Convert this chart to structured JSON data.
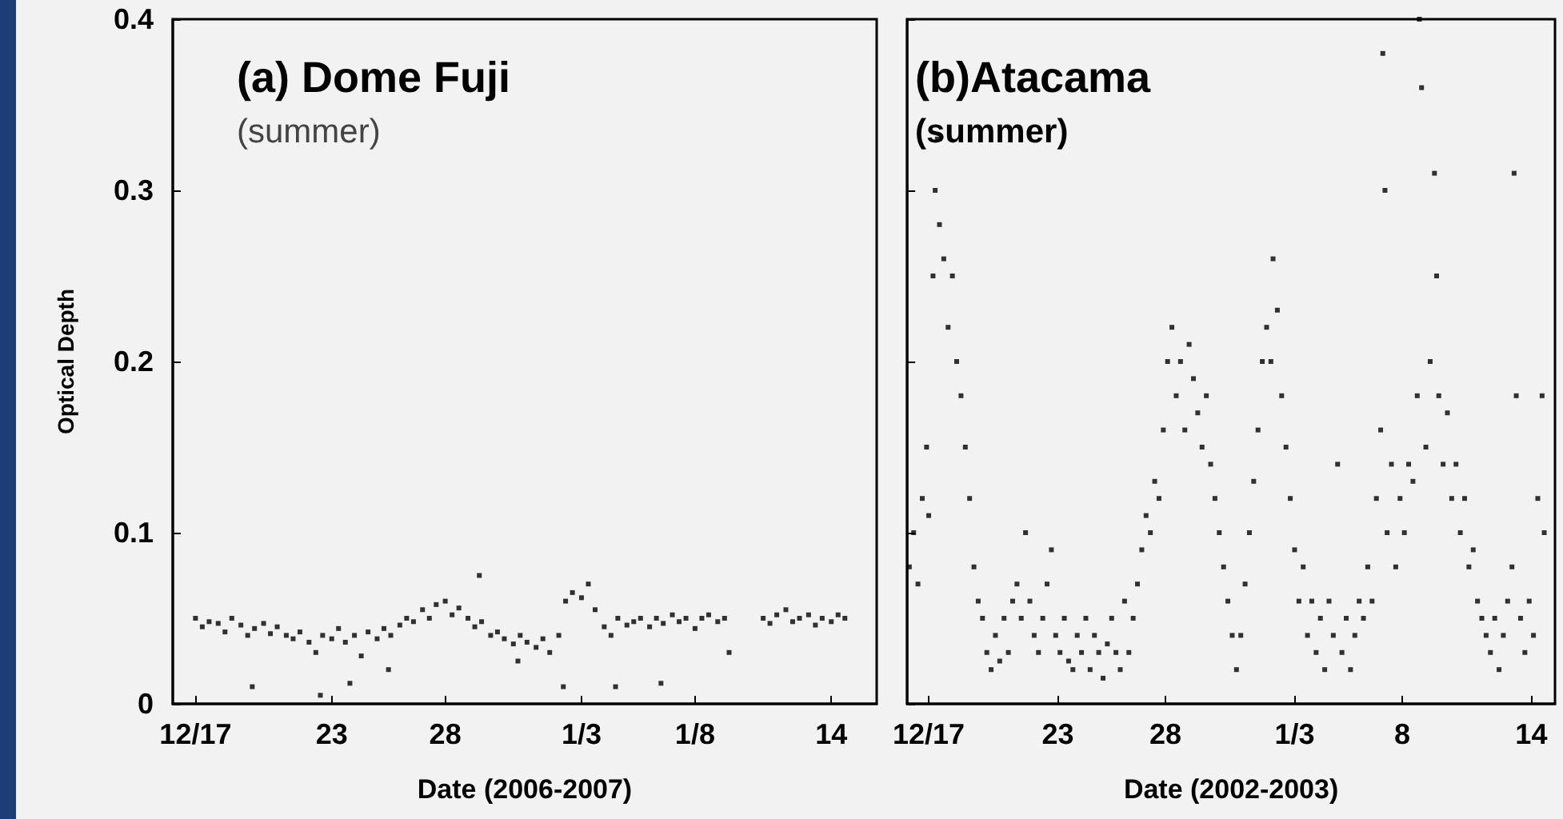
{
  "chart_data": [
    {
      "type": "scatter",
      "title": "(a) Dome Fuji",
      "subtitle": "(summer)",
      "xlabel": "Date (2006-2007)",
      "ylabel": "Optical Depth",
      "marker": "square",
      "grid": false,
      "xlim": [
        "2006-12-16",
        "2007-01-16"
      ],
      "xticks": [
        {
          "value": "2006-12-17",
          "label": "12/17"
        },
        {
          "value": "2006-12-23",
          "label": "23"
        },
        {
          "value": "2006-12-28",
          "label": "28"
        },
        {
          "value": "2007-01-03",
          "label": "1/3"
        },
        {
          "value": "2007-01-08",
          "label": "1/8"
        },
        {
          "value": "2007-01-14",
          "label": "14"
        }
      ],
      "ylim": [
        0,
        0.4
      ],
      "yticks": [
        0,
        0.1,
        0.2,
        0.3,
        0.4
      ],
      "series": [
        {
          "color": "#000000",
          "x": [
            "2006-12-17T00:00",
            "2006-12-17T07:12",
            "2006-12-17T14:24",
            "2006-12-18T00:00",
            "2006-12-18T07:12",
            "2006-12-18T14:24",
            "2006-12-19T00:00",
            "2006-12-19T07:12",
            "2006-12-19T14:24",
            "2006-12-20T00:00",
            "2006-12-20T07:12",
            "2006-12-20T14:24",
            "2006-12-21T00:00",
            "2006-12-21T07:12",
            "2006-12-21T14:24",
            "2006-12-22T00:00",
            "2006-12-22T07:12",
            "2006-12-22T14:24",
            "2006-12-23T00:00",
            "2006-12-23T07:12",
            "2006-12-23T14:24",
            "2006-12-24T00:00",
            "2006-12-24T07:12",
            "2006-12-24T14:24",
            "2006-12-25T00:00",
            "2006-12-25T07:12",
            "2006-12-25T14:24",
            "2006-12-26T00:00",
            "2006-12-26T07:12",
            "2006-12-26T14:24",
            "2006-12-27T00:00",
            "2006-12-27T07:12",
            "2006-12-27T14:24",
            "2006-12-28T00:00",
            "2006-12-28T07:12",
            "2006-12-28T14:24",
            "2006-12-29T00:00",
            "2006-12-29T07:12",
            "2006-12-29T14:24",
            "2006-12-30T00:00",
            "2006-12-30T07:12",
            "2006-12-30T14:24",
            "2006-12-31T00:00",
            "2006-12-31T07:12",
            "2006-12-31T14:24",
            "2007-01-01T00:00",
            "2007-01-01T07:12",
            "2007-01-01T14:24",
            "2007-01-02T00:00",
            "2007-01-02T07:12",
            "2007-01-02T14:24",
            "2007-01-03T00:00",
            "2007-01-03T07:12",
            "2007-01-03T14:24",
            "2007-01-04T00:00",
            "2007-01-04T07:12",
            "2007-01-04T14:24",
            "2007-01-05T00:00",
            "2007-01-05T07:12",
            "2007-01-05T14:24",
            "2007-01-06T00:00",
            "2007-01-06T07:12",
            "2007-01-06T14:24",
            "2007-01-07T00:00",
            "2007-01-07T07:12",
            "2007-01-07T14:24",
            "2007-01-08T00:00",
            "2007-01-08T07:12",
            "2007-01-08T14:24",
            "2007-01-09T00:00",
            "2007-01-09T07:12",
            "2007-01-11T00:00",
            "2007-01-11T07:12",
            "2007-01-11T14:24",
            "2007-01-12T00:00",
            "2007-01-12T07:12",
            "2007-01-12T14:24",
            "2007-01-13T00:00",
            "2007-01-13T07:12",
            "2007-01-13T14:24",
            "2007-01-14T00:00",
            "2007-01-14T07:12",
            "2007-01-14T14:24",
            "2006-12-19T12:00",
            "2006-12-22T12:00",
            "2006-12-23T19:12",
            "2006-12-25T12:00",
            "2006-12-29T12:00",
            "2006-12-31T04:48",
            "2007-01-02T04:48",
            "2007-01-04T12:00",
            "2007-01-06T12:00",
            "2007-01-09T12:00"
          ],
          "values": [
            0.05,
            0.045,
            0.048,
            0.047,
            0.042,
            0.05,
            0.046,
            0.04,
            0.044,
            0.047,
            0.041,
            0.045,
            0.04,
            0.038,
            0.042,
            0.036,
            0.03,
            0.04,
            0.038,
            0.044,
            0.036,
            0.04,
            0.028,
            0.042,
            0.038,
            0.044,
            0.04,
            0.046,
            0.05,
            0.048,
            0.055,
            0.05,
            0.058,
            0.06,
            0.052,
            0.056,
            0.05,
            0.045,
            0.048,
            0.04,
            0.042,
            0.038,
            0.035,
            0.04,
            0.036,
            0.033,
            0.038,
            0.03,
            0.04,
            0.06,
            0.065,
            0.062,
            0.07,
            0.055,
            0.045,
            0.04,
            0.05,
            0.046,
            0.048,
            0.05,
            0.045,
            0.05,
            0.047,
            0.052,
            0.048,
            0.05,
            0.044,
            0.05,
            0.052,
            0.048,
            0.05,
            0.05,
            0.047,
            0.052,
            0.055,
            0.048,
            0.05,
            0.052,
            0.046,
            0.05,
            0.048,
            0.052,
            0.05,
            0.01,
            0.005,
            0.012,
            0.02,
            0.075,
            0.025,
            0.01,
            0.01,
            0.012,
            0.03
          ]
        }
      ]
    },
    {
      "type": "scatter",
      "title": "(b)Atacama",
      "subtitle": "(summer)",
      "xlabel": "Date (2002-2003)",
      "marker": "square",
      "grid": false,
      "tick_labels": "x",
      "xlim": [
        "2002-12-16",
        "2003-01-15T02:24"
      ],
      "xticks": [
        {
          "value": "2002-12-17",
          "label": "12/17"
        },
        {
          "value": "2002-12-23",
          "label": "23"
        },
        {
          "value": "2002-12-28",
          "label": "28"
        },
        {
          "value": "2003-01-03",
          "label": "1/3"
        },
        {
          "value": "2003-01-08",
          "label": "8"
        },
        {
          "value": "2003-01-14",
          "label": "14"
        }
      ],
      "ylim": [
        0,
        0.4
      ],
      "yticks": [
        0,
        0.1,
        0.2,
        0.3,
        0.4
      ],
      "series": [
        {
          "color": "#000000",
          "x": [
            "2002-12-16T02:24",
            "2002-12-16T07:12",
            "2002-12-16T12:00",
            "2002-12-16T16:48",
            "2002-12-16T21:36",
            "2002-12-17T00:00",
            "2002-12-17T04:48",
            "2002-12-17T07:12",
            "2002-12-17T09:36",
            "2002-12-17T12:00",
            "2002-12-17T16:48",
            "2002-12-17T21:36",
            "2002-12-18T02:24",
            "2002-12-18T07:12",
            "2002-12-18T12:00",
            "2002-12-18T16:48",
            "2002-12-18T21:36",
            "2002-12-19T02:24",
            "2002-12-19T07:12",
            "2002-12-19T12:00",
            "2002-12-19T16:48",
            "2002-12-19T21:36",
            "2002-12-20T02:24",
            "2002-12-20T07:12",
            "2002-12-20T12:00",
            "2002-12-20T16:48",
            "2002-12-20T21:36",
            "2002-12-21T02:24",
            "2002-12-21T07:12",
            "2002-12-21T12:00",
            "2002-12-21T16:48",
            "2002-12-21T21:36",
            "2002-12-22T02:24",
            "2002-12-22T07:12",
            "2002-12-22T12:00",
            "2002-12-22T16:48",
            "2002-12-22T21:36",
            "2002-12-23T02:24",
            "2002-12-23T07:12",
            "2002-12-23T12:00",
            "2002-12-23T16:48",
            "2002-12-23T21:36",
            "2002-12-24T02:24",
            "2002-12-24T07:12",
            "2002-12-24T12:00",
            "2002-12-24T16:48",
            "2002-12-24T21:36",
            "2002-12-25T02:24",
            "2002-12-25T07:12",
            "2002-12-25T12:00",
            "2002-12-25T16:48",
            "2002-12-25T21:36",
            "2002-12-26T02:24",
            "2002-12-26T07:12",
            "2002-12-26T12:00",
            "2002-12-26T16:48",
            "2002-12-26T21:36",
            "2002-12-27T02:24",
            "2002-12-27T07:12",
            "2002-12-27T12:00",
            "2002-12-27T16:48",
            "2002-12-27T21:36",
            "2002-12-28T02:24",
            "2002-12-28T07:12",
            "2002-12-28T12:00",
            "2002-12-28T16:48",
            "2002-12-28T21:36",
            "2002-12-29T02:24",
            "2002-12-29T07:12",
            "2002-12-29T12:00",
            "2002-12-29T16:48",
            "2002-12-29T21:36",
            "2002-12-30T02:24",
            "2002-12-30T07:12",
            "2002-12-30T12:00",
            "2002-12-30T16:48",
            "2002-12-30T21:36",
            "2002-12-31T02:24",
            "2002-12-31T07:12",
            "2002-12-31T12:00",
            "2002-12-31T16:48",
            "2002-12-31T21:36",
            "2003-01-01T02:24",
            "2003-01-01T07:12",
            "2003-01-01T12:00",
            "2003-01-01T16:48",
            "2003-01-01T21:36",
            "2003-01-02T00:00",
            "2003-01-02T04:48",
            "2003-01-02T09:36",
            "2003-01-02T14:24",
            "2003-01-02T19:12",
            "2003-01-03T00:00",
            "2003-01-03T04:48",
            "2003-01-03T09:36",
            "2003-01-03T14:24",
            "2003-01-03T19:12",
            "2003-01-04T00:00",
            "2003-01-04T04:48",
            "2003-01-04T09:36",
            "2003-01-04T14:24",
            "2003-01-04T19:12",
            "2003-01-05T00:00",
            "2003-01-05T04:48",
            "2003-01-05T09:36",
            "2003-01-05T14:24",
            "2003-01-05T19:12",
            "2003-01-06T00:00",
            "2003-01-06T04:48",
            "2003-01-06T09:36",
            "2003-01-06T14:24",
            "2003-01-06T19:12",
            "2003-01-07T00:00",
            "2003-01-07T02:24",
            "2003-01-07T04:48",
            "2003-01-07T07:12",
            "2003-01-07T12:00",
            "2003-01-07T16:48",
            "2003-01-07T21:36",
            "2003-01-08T02:24",
            "2003-01-08T07:12",
            "2003-01-08T12:00",
            "2003-01-08T16:48",
            "2003-01-08T19:12",
            "2003-01-08T21:36",
            "2003-01-09T02:24",
            "2003-01-09T07:12",
            "2003-01-09T12:00",
            "2003-01-09T14:24",
            "2003-01-09T16:48",
            "2003-01-09T21:36",
            "2003-01-10T02:24",
            "2003-01-10T07:12",
            "2003-01-10T12:00",
            "2003-01-10T16:48",
            "2003-01-10T21:36",
            "2003-01-11T02:24",
            "2003-01-11T07:12",
            "2003-01-11T12:00",
            "2003-01-11T16:48",
            "2003-01-11T21:36",
            "2003-01-12T02:24",
            "2003-01-12T07:12",
            "2003-01-12T12:00",
            "2003-01-12T16:48",
            "2003-01-12T21:36",
            "2003-01-13T02:24",
            "2003-01-13T04:48",
            "2003-01-13T07:12",
            "2003-01-13T12:00",
            "2003-01-13T16:48",
            "2003-01-13T21:36",
            "2003-01-14T02:24",
            "2003-01-14T07:12",
            "2003-01-14T12:00",
            "2003-01-14T14:24"
          ],
          "values": [
            0.08,
            0.1,
            0.07,
            0.12,
            0.15,
            0.11,
            0.25,
            0.3,
            0.33,
            0.28,
            0.26,
            0.22,
            0.25,
            0.2,
            0.18,
            0.15,
            0.12,
            0.08,
            0.06,
            0.05,
            0.03,
            0.02,
            0.04,
            0.025,
            0.05,
            0.03,
            0.06,
            0.07,
            0.05,
            0.1,
            0.06,
            0.04,
            0.03,
            0.05,
            0.07,
            0.09,
            0.04,
            0.03,
            0.05,
            0.025,
            0.02,
            0.04,
            0.03,
            0.05,
            0.02,
            0.04,
            0.03,
            0.015,
            0.035,
            0.05,
            0.03,
            0.02,
            0.06,
            0.03,
            0.05,
            0.07,
            0.09,
            0.11,
            0.1,
            0.13,
            0.12,
            0.16,
            0.2,
            0.22,
            0.18,
            0.2,
            0.16,
            0.21,
            0.19,
            0.17,
            0.15,
            0.18,
            0.14,
            0.12,
            0.1,
            0.08,
            0.06,
            0.04,
            0.02,
            0.04,
            0.07,
            0.1,
            0.13,
            0.16,
            0.2,
            0.22,
            0.2,
            0.26,
            0.23,
            0.18,
            0.15,
            0.12,
            0.09,
            0.06,
            0.08,
            0.04,
            0.06,
            0.03,
            0.05,
            0.02,
            0.06,
            0.04,
            0.14,
            0.03,
            0.05,
            0.02,
            0.04,
            0.06,
            0.05,
            0.08,
            0.06,
            0.12,
            0.16,
            0.38,
            0.3,
            0.1,
            0.14,
            0.08,
            0.12,
            0.1,
            0.14,
            0.13,
            0.18,
            0.4,
            0.36,
            0.15,
            0.2,
            0.31,
            0.25,
            0.18,
            0.14,
            0.17,
            0.12,
            0.14,
            0.1,
            0.12,
            0.08,
            0.09,
            0.06,
            0.05,
            0.04,
            0.03,
            0.05,
            0.02,
            0.04,
            0.06,
            0.08,
            0.31,
            0.18,
            0.05,
            0.03,
            0.06,
            0.04,
            0.12,
            0.18,
            0.1
          ]
        }
      ]
    }
  ]
}
